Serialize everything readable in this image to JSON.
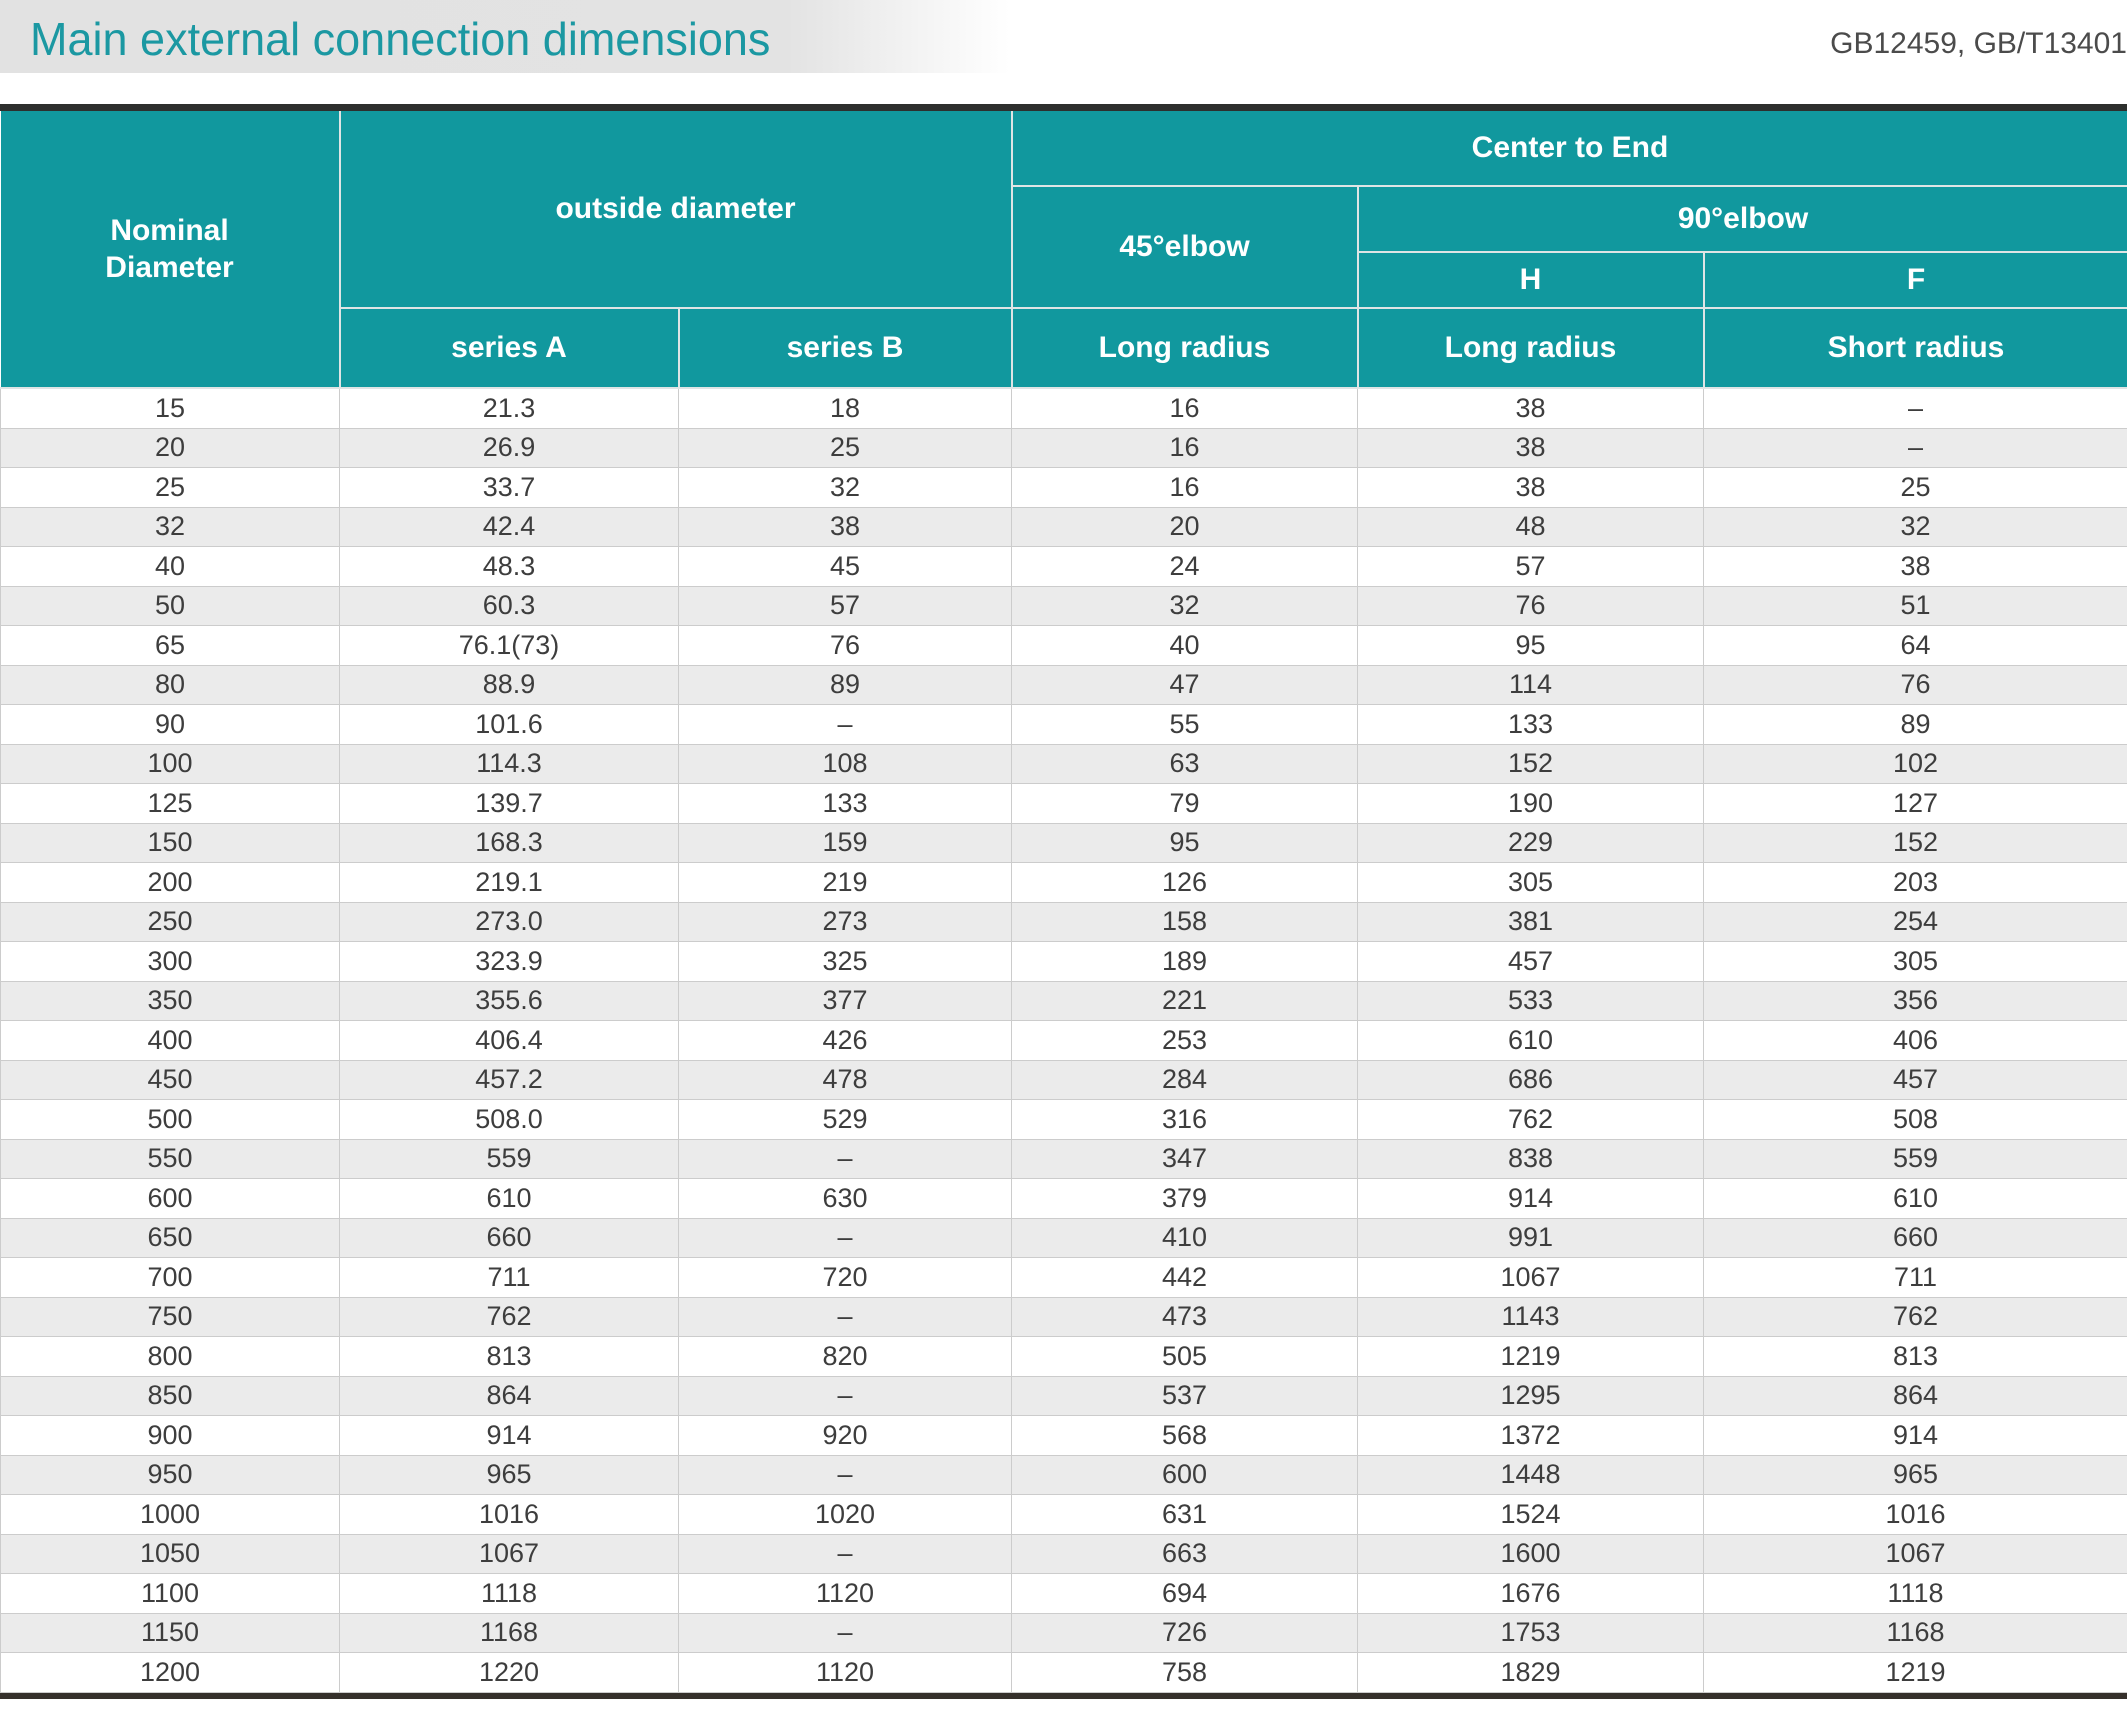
{
  "page": {
    "title": "Main external connection dimensions",
    "standard_ref": "GB12459, GB/T13401"
  },
  "colors": {
    "accent_teal": "#11989e",
    "title_teal": "#1b98a2",
    "row_alt_gray": "#ebebeb",
    "dark_rule": "#2d2f2d"
  },
  "table": {
    "header": {
      "nominal_diameter": "Nominal\nDiameter",
      "outside_diameter": "outside diameter",
      "center_to_end": "Center to End",
      "elbow_45": "45°elbow",
      "elbow_90": "90°elbow",
      "h": "H",
      "f": "F",
      "series_a": "series A",
      "series_b": "series B",
      "long_radius_45": "Long radius",
      "long_radius_h": "Long radius",
      "short_radius_f": "Short radius"
    },
    "rows": [
      [
        "15",
        "21.3",
        "18",
        "16",
        "38",
        "–"
      ],
      [
        "20",
        "26.9",
        "25",
        "16",
        "38",
        "–"
      ],
      [
        "25",
        "33.7",
        "32",
        "16",
        "38",
        "25"
      ],
      [
        "32",
        "42.4",
        "38",
        "20",
        "48",
        "32"
      ],
      [
        "40",
        "48.3",
        "45",
        "24",
        "57",
        "38"
      ],
      [
        "50",
        "60.3",
        "57",
        "32",
        "76",
        "51"
      ],
      [
        "65",
        "76.1(73)",
        "76",
        "40",
        "95",
        "64"
      ],
      [
        "80",
        "88.9",
        "89",
        "47",
        "114",
        "76"
      ],
      [
        "90",
        "101.6",
        "–",
        "55",
        "133",
        "89"
      ],
      [
        "100",
        "114.3",
        "108",
        "63",
        "152",
        "102"
      ],
      [
        "125",
        "139.7",
        "133",
        "79",
        "190",
        "127"
      ],
      [
        "150",
        "168.3",
        "159",
        "95",
        "229",
        "152"
      ],
      [
        "200",
        "219.1",
        "219",
        "126",
        "305",
        "203"
      ],
      [
        "250",
        "273.0",
        "273",
        "158",
        "381",
        "254"
      ],
      [
        "300",
        "323.9",
        "325",
        "189",
        "457",
        "305"
      ],
      [
        "350",
        "355.6",
        "377",
        "221",
        "533",
        "356"
      ],
      [
        "400",
        "406.4",
        "426",
        "253",
        "610",
        "406"
      ],
      [
        "450",
        "457.2",
        "478",
        "284",
        "686",
        "457"
      ],
      [
        "500",
        "508.0",
        "529",
        "316",
        "762",
        "508"
      ],
      [
        "550",
        "559",
        "–",
        "347",
        "838",
        "559"
      ],
      [
        "600",
        "610",
        "630",
        "379",
        "914",
        "610"
      ],
      [
        "650",
        "660",
        "–",
        "410",
        "991",
        "660"
      ],
      [
        "700",
        "711",
        "720",
        "442",
        "1067",
        "711"
      ],
      [
        "750",
        "762",
        "–",
        "473",
        "1143",
        "762"
      ],
      [
        "800",
        "813",
        "820",
        "505",
        "1219",
        "813"
      ],
      [
        "850",
        "864",
        "–",
        "537",
        "1295",
        "864"
      ],
      [
        "900",
        "914",
        "920",
        "568",
        "1372",
        "914"
      ],
      [
        "950",
        "965",
        "–",
        "600",
        "1448",
        "965"
      ],
      [
        "1000",
        "1016",
        "1020",
        "631",
        "1524",
        "1016"
      ],
      [
        "1050",
        "1067",
        "–",
        "663",
        "1600",
        "1067"
      ],
      [
        "1100",
        "1118",
        "1120",
        "694",
        "1676",
        "1118"
      ],
      [
        "1150",
        "1168",
        "–",
        "726",
        "1753",
        "1168"
      ],
      [
        "1200",
        "1220",
        "1120",
        "758",
        "1829",
        "1219"
      ]
    ]
  }
}
